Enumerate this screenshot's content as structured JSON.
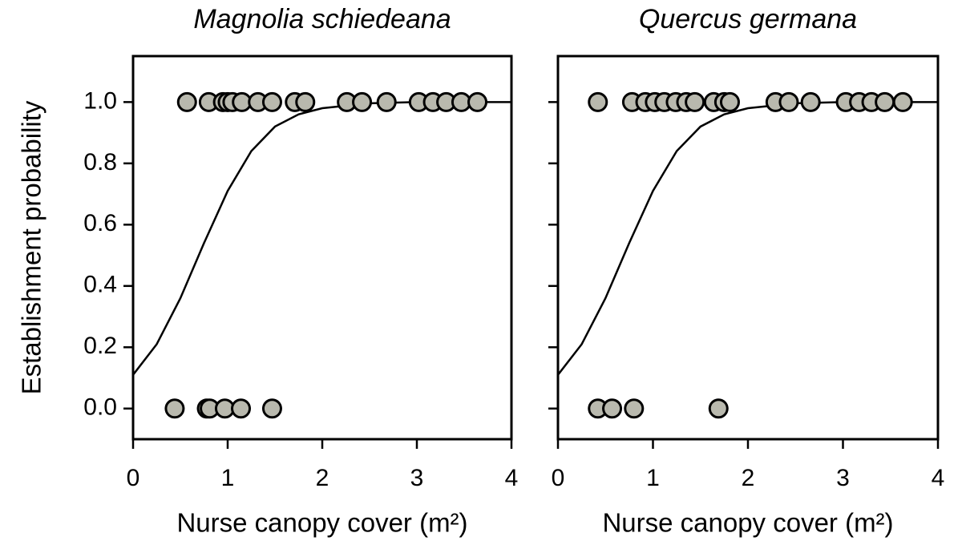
{
  "chart_data": [
    {
      "type": "scatter",
      "title": "Magnolia schiedeana",
      "xlabel": "Nurse canopy cover (m²)",
      "ylabel": "Establishment probability",
      "xlim": [
        0,
        4
      ],
      "ylim": [
        -0.1,
        1.15
      ],
      "xticks": [
        0,
        1,
        2,
        3,
        4
      ],
      "yticks": [
        {
          "value": 0,
          "label": "0.0"
        },
        {
          "value": 0.2,
          "label": "0.2"
        },
        {
          "value": 0.4,
          "label": "0.4"
        },
        {
          "value": 0.6,
          "label": "0.6"
        },
        {
          "value": 0.8,
          "label": "0.8"
        },
        {
          "value": 1,
          "label": "1.0"
        }
      ],
      "show_ytick_labels": true,
      "color": "#b9b9ae",
      "points": {
        "x": [
          0.57,
          0.8,
          0.95,
          1.0,
          1.05,
          1.15,
          1.32,
          1.47,
          1.71,
          1.82,
          2.26,
          2.42,
          2.68,
          3.02,
          3.17,
          3.31,
          3.47,
          3.64,
          0.44,
          0.78,
          0.81,
          0.97,
          1.14,
          1.47
        ],
        "y": [
          1,
          1,
          1,
          1,
          1,
          1,
          1,
          1,
          1,
          1,
          1,
          1,
          1,
          1,
          1,
          1,
          1,
          1,
          0,
          0,
          0,
          0,
          0,
          0
        ]
      },
      "fit": {
        "x": [
          0,
          0.25,
          0.5,
          0.75,
          1,
          1.25,
          1.5,
          1.75,
          2,
          2.5,
          3,
          3.5,
          4
        ],
        "y": [
          0.11,
          0.21,
          0.36,
          0.54,
          0.71,
          0.84,
          0.92,
          0.96,
          0.98,
          0.996,
          1,
          1,
          1
        ]
      }
    },
    {
      "type": "scatter",
      "title": "Quercus germana",
      "xlabel": "Nurse canopy cover (m²)",
      "xlim": [
        0,
        4
      ],
      "ylim": [
        -0.1,
        1.15
      ],
      "xticks": [
        0,
        1,
        2,
        3,
        4
      ],
      "yticks": [
        0,
        0.2,
        0.4,
        0.6,
        0.8,
        1
      ],
      "show_ytick_labels": false,
      "color": "#b9b9ae",
      "points": {
        "x": [
          0.42,
          0.78,
          0.92,
          1.02,
          1.12,
          1.24,
          1.35,
          1.44,
          1.64,
          1.75,
          1.81,
          2.29,
          2.43,
          2.66,
          3.03,
          3.17,
          3.3,
          3.44,
          3.63,
          0.42,
          0.57,
          0.8,
          1.69
        ],
        "y": [
          1,
          1,
          1,
          1,
          1,
          1,
          1,
          1,
          1,
          1,
          1,
          1,
          1,
          1,
          1,
          1,
          1,
          1,
          1,
          0,
          0,
          0,
          0
        ]
      },
      "fit": {
        "x": [
          0,
          0.25,
          0.5,
          0.75,
          1,
          1.25,
          1.5,
          1.75,
          2,
          2.5,
          3,
          3.5,
          4
        ],
        "y": [
          0.11,
          0.21,
          0.36,
          0.54,
          0.71,
          0.84,
          0.92,
          0.96,
          0.98,
          0.996,
          1,
          1,
          1
        ]
      }
    }
  ]
}
